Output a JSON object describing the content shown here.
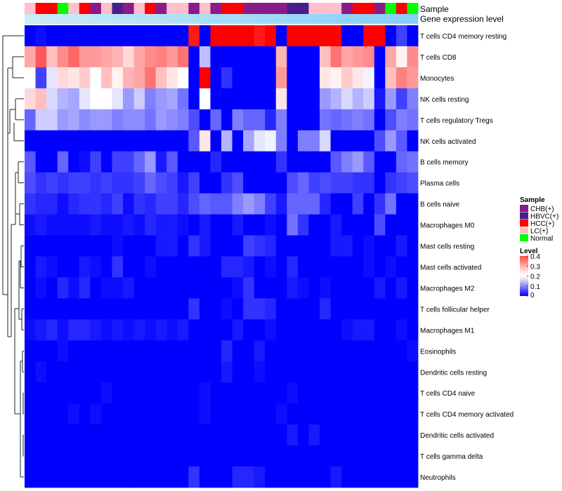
{
  "chart_data": {
    "type": "heatmap",
    "title": "",
    "annotation_tracks": [
      "Sample",
      "Gene expression level"
    ],
    "rows": [
      "T cells CD4 memory resting",
      "T cells CD8",
      "Monocytes",
      "NK cells resting",
      "T cells regulatory  Tregs",
      "NK cells activated",
      "B cells memory",
      "Plasma cells",
      "B cells naive",
      "Macrophages M0",
      "Mast cells resting",
      "Mast cells activated",
      "Macrophages M2",
      "T cells follicular helper",
      "Macrophages M1",
      "Eosinophils",
      "Dendritic cells resting",
      "T cells CD4 naive",
      "T cells CD4 memory activated",
      "Dendritic cells activated",
      "T cells gamma delta",
      "Neutrophils"
    ],
    "column_samples": [
      "LC(+)",
      "HCC(+)",
      "HCC(+)",
      "Normal",
      "LC(+)",
      "HCC(+)",
      "CHB(+)",
      "LC(+)",
      "HBVC(+)",
      "CHB(+)",
      "LC(+)",
      "HCC(+)",
      "CHB(+)",
      "LC(+)",
      "LC(+)",
      "CHB(+)",
      "LC(+)",
      "CHB(+)",
      "HCC(+)",
      "HCC(+)",
      "CHB(+)",
      "CHB(+)",
      "CHB(+)",
      "CHB(+)",
      "HBVC(+)",
      "HBVC(+)",
      "LC(+)",
      "LC(+)",
      "LC(+)",
      "CHB(+)",
      "HCC(+)",
      "HCC(+)",
      "CHB(+)",
      "Normal",
      "HCC(+)",
      "Normal"
    ],
    "gene_expression_track": "light-blue",
    "values": [
      [
        0.0,
        0.01,
        0.0,
        0.0,
        0.0,
        0.0,
        0.0,
        0.0,
        0.0,
        0.0,
        0.0,
        0.0,
        0.0,
        0.0,
        0.0,
        0.38,
        0.0,
        0.4,
        0.4,
        0.4,
        0.4,
        0.38,
        0.4,
        0.0,
        0.4,
        0.4,
        0.4,
        0.4,
        0.4,
        0.0,
        0.0,
        0.4,
        0.4,
        0.0,
        0.05,
        0.0
      ],
      [
        0.27,
        0.33,
        0.25,
        0.29,
        0.32,
        0.28,
        0.28,
        0.27,
        0.26,
        0.23,
        0.27,
        0.29,
        0.3,
        0.28,
        0.31,
        0.0,
        0.15,
        0.0,
        0.0,
        0.0,
        0.0,
        0.0,
        0.0,
        0.26,
        0.0,
        0.0,
        0.0,
        0.25,
        0.31,
        0.27,
        0.28,
        0.29,
        0.0,
        0.27,
        0.21,
        0.29
      ],
      [
        0.2,
        0.05,
        0.18,
        0.23,
        0.22,
        0.24,
        0.2,
        0.25,
        0.21,
        0.26,
        0.27,
        0.31,
        0.25,
        0.22,
        0.2,
        0.0,
        0.4,
        0.0,
        0.04,
        0.0,
        0.0,
        0.0,
        0.0,
        0.28,
        0.0,
        0.0,
        0.0,
        0.22,
        0.21,
        0.24,
        0.22,
        0.19,
        0.0,
        0.25,
        0.3,
        0.28
      ],
      [
        0.23,
        0.25,
        0.17,
        0.14,
        0.13,
        0.18,
        0.2,
        0.2,
        0.18,
        0.12,
        0.16,
        0.1,
        0.12,
        0.13,
        0.09,
        0.0,
        0.2,
        0.0,
        0.0,
        0.0,
        0.0,
        0.0,
        0.0,
        0.22,
        0.0,
        0.0,
        0.0,
        0.12,
        0.14,
        0.17,
        0.14,
        0.16,
        0.02,
        0.12,
        0.05,
        0.1
      ],
      [
        0.08,
        0.16,
        0.16,
        0.12,
        0.13,
        0.11,
        0.12,
        0.12,
        0.1,
        0.11,
        0.11,
        0.09,
        0.12,
        0.11,
        0.1,
        0.06,
        0.0,
        0.08,
        0.0,
        0.1,
        0.08,
        0.08,
        0.03,
        0.1,
        0.0,
        0.0,
        0.0,
        0.09,
        0.08,
        0.09,
        0.1,
        0.09,
        0.0,
        0.06,
        0.1,
        0.09
      ],
      [
        0.0,
        0.0,
        0.0,
        0.0,
        0.0,
        0.0,
        0.0,
        0.0,
        0.0,
        0.0,
        0.0,
        0.0,
        0.0,
        0.0,
        0.0,
        0.07,
        0.22,
        0.0,
        0.14,
        0.0,
        0.13,
        0.18,
        0.19,
        0.1,
        0.0,
        0.1,
        0.1,
        0.17,
        0.0,
        0.0,
        0.0,
        0.0,
        0.06,
        0.12,
        0.07,
        0.0
      ],
      [
        0.07,
        0.0,
        0.0,
        0.08,
        0.0,
        0.01,
        0.05,
        0.0,
        0.05,
        0.05,
        0.08,
        0.12,
        0.02,
        0.07,
        0.0,
        0.0,
        0.0,
        0.03,
        0.0,
        0.0,
        0.0,
        0.0,
        0.0,
        0.04,
        0.0,
        0.0,
        0.0,
        0.0,
        0.07,
        0.1,
        0.12,
        0.07,
        0.0,
        0.0,
        0.08,
        0.09
      ],
      [
        0.06,
        0.04,
        0.05,
        0.04,
        0.05,
        0.05,
        0.04,
        0.05,
        0.04,
        0.04,
        0.05,
        0.08,
        0.06,
        0.05,
        0.02,
        0.05,
        0.0,
        0.0,
        0.04,
        0.06,
        0.0,
        0.0,
        0.0,
        0.0,
        0.06,
        0.08,
        0.05,
        0.06,
        0.05,
        0.05,
        0.04,
        0.04,
        0.0,
        0.04,
        0.05,
        0.06
      ],
      [
        0.04,
        0.03,
        0.03,
        0.01,
        0.03,
        0.04,
        0.04,
        0.03,
        0.05,
        0.01,
        0.04,
        0.03,
        0.05,
        0.05,
        0.03,
        0.06,
        0.08,
        0.07,
        0.07,
        0.1,
        0.12,
        0.1,
        0.05,
        0.02,
        0.08,
        0.08,
        0.08,
        0.03,
        0.0,
        0.0,
        0.05,
        0.0,
        0.04,
        0.09,
        0.0,
        0.0
      ],
      [
        0.01,
        0.02,
        0.01,
        0.01,
        0.01,
        0.01,
        0.02,
        0.01,
        0.01,
        0.02,
        0.01,
        0.03,
        0.02,
        0.02,
        0.01,
        0.0,
        0.02,
        0.0,
        0.0,
        0.02,
        0.0,
        0.0,
        0.01,
        0.0,
        0.09,
        0.04,
        0.0,
        0.0,
        0.02,
        0.0,
        0.0,
        0.0,
        0.06,
        0.0,
        0.0,
        0.0
      ],
      [
        0.0,
        0.0,
        0.0,
        0.0,
        0.0,
        0.0,
        0.0,
        0.0,
        0.01,
        0.0,
        0.0,
        0.0,
        0.02,
        0.02,
        0.0,
        0.04,
        0.02,
        0.0,
        0.0,
        0.0,
        0.05,
        0.04,
        0.03,
        0.0,
        0.0,
        0.0,
        0.0,
        0.0,
        0.02,
        0.02,
        0.0,
        0.01,
        0.0,
        0.0,
        0.02,
        0.0
      ],
      [
        0.0,
        0.02,
        0.01,
        0.0,
        0.0,
        0.02,
        0.01,
        0.0,
        0.04,
        0.0,
        0.0,
        0.01,
        0.0,
        0.0,
        0.0,
        0.0,
        0.0,
        0.0,
        0.03,
        0.03,
        0.02,
        0.0,
        0.01,
        0.0,
        0.03,
        0.0,
        0.0,
        0.0,
        0.0,
        0.0,
        0.0,
        0.01,
        0.0,
        0.01,
        0.0,
        0.0
      ],
      [
        0.0,
        0.01,
        0.0,
        0.03,
        0.01,
        0.03,
        0.0,
        0.01,
        0.01,
        0.02,
        0.0,
        0.0,
        0.0,
        0.0,
        0.0,
        0.0,
        0.0,
        0.0,
        0.0,
        0.01,
        0.04,
        0.0,
        0.0,
        0.0,
        0.02,
        0.01,
        0.0,
        0.01,
        0.0,
        0.0,
        0.0,
        0.0,
        0.02,
        0.0,
        0.02,
        0.0
      ],
      [
        0.0,
        0.0,
        0.0,
        0.0,
        0.0,
        0.0,
        0.0,
        0.0,
        0.0,
        0.0,
        0.0,
        0.0,
        0.0,
        0.0,
        0.0,
        0.04,
        0.0,
        0.0,
        0.01,
        0.0,
        0.04,
        0.04,
        0.03,
        0.0,
        0.0,
        0.0,
        0.0,
        0.03,
        0.0,
        0.0,
        0.0,
        0.0,
        0.0,
        0.0,
        0.0,
        0.0
      ],
      [
        0.01,
        0.02,
        0.03,
        0.01,
        0.03,
        0.03,
        0.02,
        0.01,
        0.02,
        0.01,
        0.02,
        0.01,
        0.02,
        0.01,
        0.02,
        0.0,
        0.0,
        0.0,
        0.0,
        0.02,
        0.0,
        0.0,
        0.01,
        0.0,
        0.0,
        0.0,
        0.0,
        0.0,
        0.0,
        0.01,
        0.02,
        0.02,
        0.0,
        0.0,
        0.01,
        0.0
      ],
      [
        0.0,
        0.0,
        0.0,
        0.01,
        0.0,
        0.0,
        0.0,
        0.0,
        0.0,
        0.0,
        0.0,
        0.0,
        0.0,
        0.0,
        0.0,
        0.0,
        0.0,
        0.0,
        0.03,
        0.0,
        0.0,
        0.02,
        0.0,
        0.0,
        0.0,
        0.0,
        0.0,
        0.0,
        0.0,
        0.0,
        0.0,
        0.0,
        0.0,
        0.0,
        0.0,
        0.01
      ],
      [
        0.0,
        0.01,
        0.0,
        0.0,
        0.0,
        0.0,
        0.0,
        0.0,
        0.0,
        0.0,
        0.0,
        0.0,
        0.0,
        0.0,
        0.0,
        0.0,
        0.0,
        0.0,
        0.02,
        0.0,
        0.0,
        0.01,
        0.0,
        0.0,
        0.0,
        0.0,
        0.0,
        0.0,
        0.0,
        0.0,
        0.0,
        0.0,
        0.0,
        0.0,
        0.0,
        0.0
      ],
      [
        0.0,
        0.0,
        0.0,
        0.0,
        0.0,
        0.0,
        0.0,
        0.01,
        0.0,
        0.0,
        0.0,
        0.0,
        0.0,
        0.0,
        0.0,
        0.0,
        0.01,
        0.0,
        0.0,
        0.0,
        0.0,
        0.0,
        0.0,
        0.0,
        0.01,
        0.0,
        0.0,
        0.0,
        0.0,
        0.0,
        0.0,
        0.0,
        0.0,
        0.0,
        0.0,
        0.0
      ],
      [
        0.0,
        0.0,
        0.0,
        0.0,
        0.01,
        0.0,
        0.01,
        0.0,
        0.0,
        0.0,
        0.0,
        0.0,
        0.0,
        0.0,
        0.0,
        0.0,
        0.01,
        0.0,
        0.0,
        0.0,
        0.0,
        0.0,
        0.0,
        0.01,
        0.0,
        0.0,
        0.0,
        0.0,
        0.0,
        0.0,
        0.0,
        0.0,
        0.0,
        0.0,
        0.0,
        0.0
      ],
      [
        0.0,
        0.0,
        0.0,
        0.0,
        0.0,
        0.0,
        0.0,
        0.0,
        0.0,
        0.0,
        0.0,
        0.0,
        0.0,
        0.0,
        0.0,
        0.0,
        0.0,
        0.0,
        0.0,
        0.0,
        0.0,
        0.0,
        0.0,
        0.0,
        0.02,
        0.0,
        0.02,
        0.0,
        0.0,
        0.0,
        0.0,
        0.0,
        0.0,
        0.0,
        0.0,
        0.0
      ],
      [
        0.0,
        0.0,
        0.0,
        0.0,
        0.0,
        0.0,
        0.0,
        0.0,
        0.0,
        0.0,
        0.0,
        0.0,
        0.0,
        0.0,
        0.0,
        0.0,
        0.0,
        0.0,
        0.0,
        0.0,
        0.0,
        0.0,
        0.0,
        0.0,
        0.0,
        0.0,
        0.0,
        0.0,
        0.0,
        0.0,
        0.0,
        0.0,
        0.0,
        0.0,
        0.0,
        0.0
      ],
      [
        0.0,
        0.0,
        0.0,
        0.0,
        0.0,
        0.0,
        0.0,
        0.0,
        0.0,
        0.0,
        0.0,
        0.0,
        0.0,
        0.0,
        0.0,
        0.04,
        0.0,
        0.0,
        0.0,
        0.03,
        0.03,
        0.02,
        0.0,
        0.0,
        0.0,
        0.0,
        0.0,
        0.0,
        0.02,
        0.0,
        0.0,
        0.0,
        0.0,
        0.0,
        0.0,
        0.0
      ]
    ],
    "color_scale": {
      "min": 0,
      "max": 0.4,
      "low": "#0000FF",
      "mid": "#FFFFFF",
      "high": "#FF0000"
    },
    "legend": {
      "sample_title": "Sample",
      "sample_entries": [
        {
          "label": "CHB(+)",
          "color": "#8B1A89"
        },
        {
          "label": "HBVC(+)",
          "color": "#4B1D8B"
        },
        {
          "label": "HCC(+)",
          "color": "#FF0000"
        },
        {
          "label": "LC(+)",
          "color": "#FFC0CB"
        },
        {
          "label": "Normal",
          "color": "#00FF00"
        }
      ],
      "level_title": "Level",
      "level_ticks": [
        "0.4",
        "0.3",
        "0.2",
        "0.1",
        "0"
      ],
      "level_tick_values": [
        0.4,
        0.3,
        0.2,
        0.1,
        0
      ],
      "placement": "right"
    },
    "gene_track_color": "#87CEFA"
  }
}
